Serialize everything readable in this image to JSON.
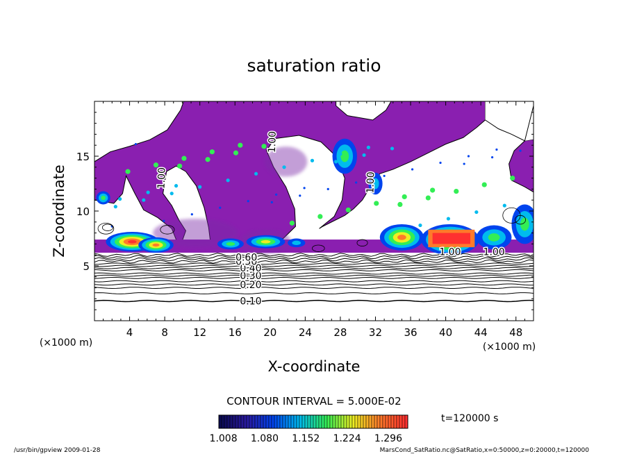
{
  "chart_data": {
    "type": "heatmap",
    "title": "saturation ratio",
    "xlabel": "X-coordinate",
    "ylabel": "Z-coordinate",
    "x_unit_left": "(×1000 m)",
    "x_unit_right": "(×1000 m)",
    "xlim": [
      0,
      50
    ],
    "ylim": [
      0,
      20
    ],
    "x_ticks": [
      "4",
      "8",
      "12",
      "16",
      "20",
      "24",
      "28",
      "32",
      "36",
      "40",
      "44",
      "48"
    ],
    "y_ticks": [
      "5",
      "10",
      "15"
    ],
    "contour_interval": "CONTOUR INTERVAL = 5.000E-02",
    "time_label": "t=120000 s",
    "colorbar_ticks": [
      "1.008",
      "1.080",
      "1.152",
      "1.224",
      "1.296"
    ],
    "colorbar_range": [
      1.0,
      1.33
    ],
    "contour_labels": [
      {
        "text": "0.10",
        "x": 17.8,
        "y": 1.8
      },
      {
        "text": "0.20",
        "x": 17.8,
        "y": 3.3
      },
      {
        "text": "0.30",
        "x": 17.8,
        "y": 4.1
      },
      {
        "text": "0.40",
        "x": 17.8,
        "y": 4.8
      },
      {
        "text": "0.50",
        "x": 17.3,
        "y": 5.4
      },
      {
        "text": "0.60",
        "x": 17.3,
        "y": 5.8
      },
      {
        "text": "1.00",
        "x": 7.6,
        "y": 13.0
      },
      {
        "text": "1.00",
        "x": 20.2,
        "y": 16.3
      },
      {
        "text": "1.00",
        "x": 31.4,
        "y": 12.6
      },
      {
        "text": "1.00",
        "x": 40.5,
        "y": 6.3
      },
      {
        "text": "1.00",
        "x": 45.5,
        "y": 6.3
      }
    ],
    "colors": {
      "supersaturated_region": "#8a1fb0",
      "colormap": [
        "#0a0a50",
        "#2a1aa0",
        "#0044ee",
        "#00bbee",
        "#33ee55",
        "#eeee22",
        "#ff7a2a",
        "#ff3030"
      ]
    }
  },
  "footer": {
    "left": "/usr/bin/gpview   2009-01-28",
    "right": "MarsCond_SatRatio.nc@SatRatio,x=0:50000,z=0:20000,t=120000"
  }
}
